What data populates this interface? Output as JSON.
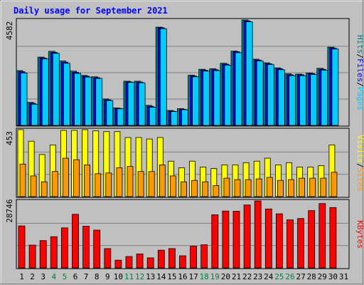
{
  "chart_data": {
    "type": "bar",
    "title": "Daily usage for September 2021",
    "days": [
      "1",
      "2",
      "3",
      "4",
      "5",
      "6",
      "7",
      "8",
      "9",
      "10",
      "11",
      "12",
      "13",
      "14",
      "15",
      "16",
      "17",
      "18",
      "19",
      "20",
      "21",
      "22",
      "23",
      "24",
      "25",
      "26",
      "27",
      "28",
      "29",
      "30",
      "31"
    ],
    "weekend_days": [
      "4",
      "5",
      "11",
      "12",
      "18",
      "19",
      "25",
      "26"
    ],
    "panels": [
      {
        "name": "top",
        "ymax_label": "4582",
        "ymax": 4582,
        "series_labels": [
          "Pages",
          "Files",
          "Hits"
        ],
        "series": [
          {
            "name": "Hits",
            "color": "#008080",
            "values": [
              2380,
              1000,
              2970,
              3220,
              2800,
              2360,
              2170,
              2110,
              1150,
              760,
              1920,
              1920,
              870,
              4270,
              650,
              730,
              2180,
              2440,
              2460,
              2700,
              3230,
              4582,
              2880,
              2720,
              2500,
              2240,
              2230,
              2280,
              2480,
              3400,
              0
            ]
          },
          {
            "name": "Files",
            "color": "#0000ff",
            "values": [
              2330,
              960,
              2930,
              3170,
              2750,
              2310,
              2140,
              2070,
              1110,
              740,
              1890,
              1880,
              830,
              4240,
              620,
              700,
              2150,
              2400,
              2420,
              2660,
              3200,
              4540,
              2840,
              2680,
              2460,
              2200,
              2200,
              2250,
              2440,
              3360,
              0
            ]
          },
          {
            "name": "Pages",
            "color": "#00ccff",
            "values": [
              2280,
              920,
              2890,
              3130,
              2700,
              2260,
              2100,
              2040,
              1080,
              720,
              1870,
              1850,
              790,
              4200,
              600,
              680,
              2110,
              2360,
              2380,
              2620,
              3160,
              4500,
              2800,
              2640,
              2420,
              2160,
              2160,
              2210,
              2400,
              3320,
              0
            ]
          }
        ]
      },
      {
        "name": "middle",
        "ymax_label": "453",
        "ymax": 453,
        "series_labels": [
          "Sites",
          "Visits"
        ],
        "series": [
          {
            "name": "Visits",
            "color": "#ffff00",
            "values": [
              453,
              375,
              285,
              350,
              448,
              448,
              453,
              445,
              440,
              440,
              400,
              400,
              390,
              400,
              240,
              195,
              240,
              200,
              190,
              215,
              215,
              230,
              240,
              260,
              215,
              230,
              200,
              200,
              210,
              350,
              0
            ]
          },
          {
            "name": "Sites",
            "color": "#ff9900",
            "values": [
              220,
              140,
              100,
              170,
              260,
              250,
              215,
              155,
              160,
              195,
              205,
              170,
              170,
              215,
              140,
              100,
              110,
              100,
              75,
              125,
              115,
              115,
              120,
              130,
              110,
              115,
              125,
              125,
              125,
              165,
              0
            ]
          }
        ]
      },
      {
        "name": "bottom",
        "ymax_label": "28746",
        "ymax": 28746,
        "series_labels": [
          "KBytes"
        ],
        "series": [
          {
            "name": "KBytes",
            "color": "#ff0000",
            "values": [
              18000,
              9800,
              11700,
              13400,
              17200,
              23000,
              17900,
              16200,
              8300,
              3300,
              4900,
              6000,
              4300,
              7600,
              8300,
              5200,
              9300,
              9900,
              22800,
              24400,
              24300,
              27000,
              28746,
              25300,
              23200,
              20600,
              21200,
              24600,
              27600,
              25900,
              0
            ]
          }
        ]
      }
    ]
  }
}
